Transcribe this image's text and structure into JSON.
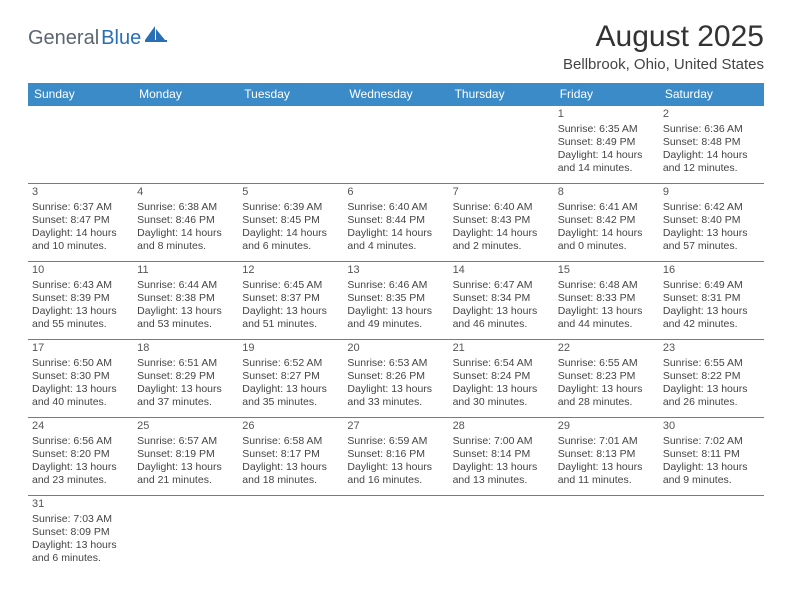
{
  "logo": {
    "part1": "General",
    "part2": "Blue"
  },
  "title": "August 2025",
  "location": "Bellbrook, Ohio, United States",
  "colors": {
    "header_bg": "#3b8bc9",
    "header_text": "#ffffff",
    "border": "#3b8bc9",
    "body_text": "#444444",
    "logo_gray": "#5c6670",
    "logo_blue": "#2a6fb5",
    "page_bg": "#ffffff",
    "title_color": "#333333"
  },
  "typography": {
    "title_fontsize": 30,
    "location_fontsize": 15,
    "header_cell_fontsize": 12,
    "cell_fontsize": 10.5,
    "logo_fontsize": 20
  },
  "day_headers": [
    "Sunday",
    "Monday",
    "Tuesday",
    "Wednesday",
    "Thursday",
    "Friday",
    "Saturday"
  ],
  "weeks": [
    [
      null,
      null,
      null,
      null,
      null,
      {
        "num": "1",
        "sunrise": "Sunrise: 6:35 AM",
        "sunset": "Sunset: 8:49 PM",
        "daylight1": "Daylight: 14 hours",
        "daylight2": "and 14 minutes."
      },
      {
        "num": "2",
        "sunrise": "Sunrise: 6:36 AM",
        "sunset": "Sunset: 8:48 PM",
        "daylight1": "Daylight: 14 hours",
        "daylight2": "and 12 minutes."
      }
    ],
    [
      {
        "num": "3",
        "sunrise": "Sunrise: 6:37 AM",
        "sunset": "Sunset: 8:47 PM",
        "daylight1": "Daylight: 14 hours",
        "daylight2": "and 10 minutes."
      },
      {
        "num": "4",
        "sunrise": "Sunrise: 6:38 AM",
        "sunset": "Sunset: 8:46 PM",
        "daylight1": "Daylight: 14 hours",
        "daylight2": "and 8 minutes."
      },
      {
        "num": "5",
        "sunrise": "Sunrise: 6:39 AM",
        "sunset": "Sunset: 8:45 PM",
        "daylight1": "Daylight: 14 hours",
        "daylight2": "and 6 minutes."
      },
      {
        "num": "6",
        "sunrise": "Sunrise: 6:40 AM",
        "sunset": "Sunset: 8:44 PM",
        "daylight1": "Daylight: 14 hours",
        "daylight2": "and 4 minutes."
      },
      {
        "num": "7",
        "sunrise": "Sunrise: 6:40 AM",
        "sunset": "Sunset: 8:43 PM",
        "daylight1": "Daylight: 14 hours",
        "daylight2": "and 2 minutes."
      },
      {
        "num": "8",
        "sunrise": "Sunrise: 6:41 AM",
        "sunset": "Sunset: 8:42 PM",
        "daylight1": "Daylight: 14 hours",
        "daylight2": "and 0 minutes."
      },
      {
        "num": "9",
        "sunrise": "Sunrise: 6:42 AM",
        "sunset": "Sunset: 8:40 PM",
        "daylight1": "Daylight: 13 hours",
        "daylight2": "and 57 minutes."
      }
    ],
    [
      {
        "num": "10",
        "sunrise": "Sunrise: 6:43 AM",
        "sunset": "Sunset: 8:39 PM",
        "daylight1": "Daylight: 13 hours",
        "daylight2": "and 55 minutes."
      },
      {
        "num": "11",
        "sunrise": "Sunrise: 6:44 AM",
        "sunset": "Sunset: 8:38 PM",
        "daylight1": "Daylight: 13 hours",
        "daylight2": "and 53 minutes."
      },
      {
        "num": "12",
        "sunrise": "Sunrise: 6:45 AM",
        "sunset": "Sunset: 8:37 PM",
        "daylight1": "Daylight: 13 hours",
        "daylight2": "and 51 minutes."
      },
      {
        "num": "13",
        "sunrise": "Sunrise: 6:46 AM",
        "sunset": "Sunset: 8:35 PM",
        "daylight1": "Daylight: 13 hours",
        "daylight2": "and 49 minutes."
      },
      {
        "num": "14",
        "sunrise": "Sunrise: 6:47 AM",
        "sunset": "Sunset: 8:34 PM",
        "daylight1": "Daylight: 13 hours",
        "daylight2": "and 46 minutes."
      },
      {
        "num": "15",
        "sunrise": "Sunrise: 6:48 AM",
        "sunset": "Sunset: 8:33 PM",
        "daylight1": "Daylight: 13 hours",
        "daylight2": "and 44 minutes."
      },
      {
        "num": "16",
        "sunrise": "Sunrise: 6:49 AM",
        "sunset": "Sunset: 8:31 PM",
        "daylight1": "Daylight: 13 hours",
        "daylight2": "and 42 minutes."
      }
    ],
    [
      {
        "num": "17",
        "sunrise": "Sunrise: 6:50 AM",
        "sunset": "Sunset: 8:30 PM",
        "daylight1": "Daylight: 13 hours",
        "daylight2": "and 40 minutes."
      },
      {
        "num": "18",
        "sunrise": "Sunrise: 6:51 AM",
        "sunset": "Sunset: 8:29 PM",
        "daylight1": "Daylight: 13 hours",
        "daylight2": "and 37 minutes."
      },
      {
        "num": "19",
        "sunrise": "Sunrise: 6:52 AM",
        "sunset": "Sunset: 8:27 PM",
        "daylight1": "Daylight: 13 hours",
        "daylight2": "and 35 minutes."
      },
      {
        "num": "20",
        "sunrise": "Sunrise: 6:53 AM",
        "sunset": "Sunset: 8:26 PM",
        "daylight1": "Daylight: 13 hours",
        "daylight2": "and 33 minutes."
      },
      {
        "num": "21",
        "sunrise": "Sunrise: 6:54 AM",
        "sunset": "Sunset: 8:24 PM",
        "daylight1": "Daylight: 13 hours",
        "daylight2": "and 30 minutes."
      },
      {
        "num": "22",
        "sunrise": "Sunrise: 6:55 AM",
        "sunset": "Sunset: 8:23 PM",
        "daylight1": "Daylight: 13 hours",
        "daylight2": "and 28 minutes."
      },
      {
        "num": "23",
        "sunrise": "Sunrise: 6:55 AM",
        "sunset": "Sunset: 8:22 PM",
        "daylight1": "Daylight: 13 hours",
        "daylight2": "and 26 minutes."
      }
    ],
    [
      {
        "num": "24",
        "sunrise": "Sunrise: 6:56 AM",
        "sunset": "Sunset: 8:20 PM",
        "daylight1": "Daylight: 13 hours",
        "daylight2": "and 23 minutes."
      },
      {
        "num": "25",
        "sunrise": "Sunrise: 6:57 AM",
        "sunset": "Sunset: 8:19 PM",
        "daylight1": "Daylight: 13 hours",
        "daylight2": "and 21 minutes."
      },
      {
        "num": "26",
        "sunrise": "Sunrise: 6:58 AM",
        "sunset": "Sunset: 8:17 PM",
        "daylight1": "Daylight: 13 hours",
        "daylight2": "and 18 minutes."
      },
      {
        "num": "27",
        "sunrise": "Sunrise: 6:59 AM",
        "sunset": "Sunset: 8:16 PM",
        "daylight1": "Daylight: 13 hours",
        "daylight2": "and 16 minutes."
      },
      {
        "num": "28",
        "sunrise": "Sunrise: 7:00 AM",
        "sunset": "Sunset: 8:14 PM",
        "daylight1": "Daylight: 13 hours",
        "daylight2": "and 13 minutes."
      },
      {
        "num": "29",
        "sunrise": "Sunrise: 7:01 AM",
        "sunset": "Sunset: 8:13 PM",
        "daylight1": "Daylight: 13 hours",
        "daylight2": "and 11 minutes."
      },
      {
        "num": "30",
        "sunrise": "Sunrise: 7:02 AM",
        "sunset": "Sunset: 8:11 PM",
        "daylight1": "Daylight: 13 hours",
        "daylight2": "and 9 minutes."
      }
    ],
    [
      {
        "num": "31",
        "sunrise": "Sunrise: 7:03 AM",
        "sunset": "Sunset: 8:09 PM",
        "daylight1": "Daylight: 13 hours",
        "daylight2": "and 6 minutes."
      },
      null,
      null,
      null,
      null,
      null,
      null
    ]
  ]
}
